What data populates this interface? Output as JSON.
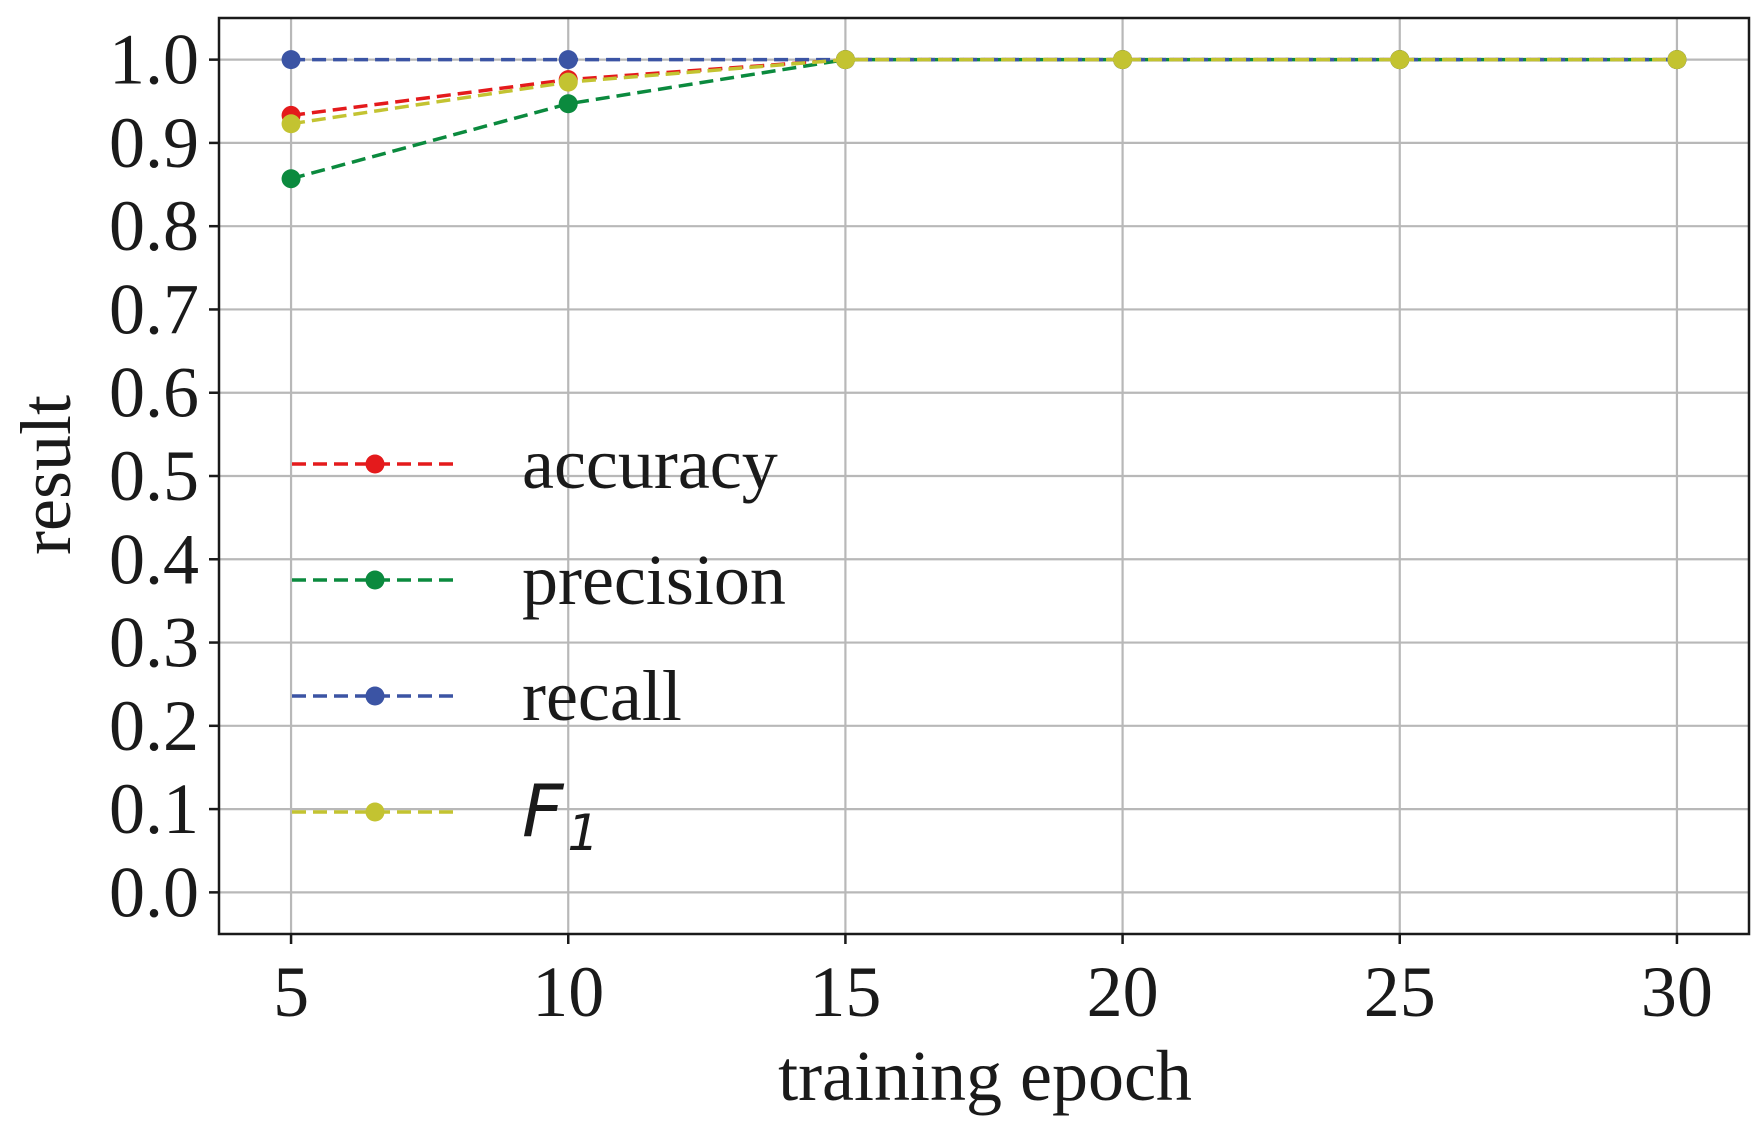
{
  "chart_data": {
    "type": "line",
    "title": "",
    "xlabel": "training epoch",
    "ylabel": "result",
    "x": [
      5,
      10,
      15,
      20,
      25,
      30
    ],
    "xticks": [
      "5",
      "10",
      "15",
      "20",
      "25",
      "30"
    ],
    "yticks": [
      "0.0",
      "0.1",
      "0.2",
      "0.3",
      "0.4",
      "0.5",
      "0.6",
      "0.7",
      "0.8",
      "0.9",
      "1.0"
    ],
    "xlim": [
      3.7,
      31.3
    ],
    "ylim": [
      -0.05,
      1.05
    ],
    "grid": true,
    "legend_position": "center-left",
    "series": [
      {
        "name": "accuracy",
        "color": "#e41a1c",
        "linestyle": "dashed",
        "marker": "circle",
        "values": [
          0.933,
          0.976,
          1.0,
          1.0,
          1.0,
          1.0
        ]
      },
      {
        "name": "precision",
        "color": "#0b8a3e",
        "linestyle": "dashed",
        "marker": "circle",
        "values": [
          0.857,
          0.947,
          1.0,
          1.0,
          1.0,
          1.0
        ]
      },
      {
        "name": "recall",
        "color": "#3b54a4",
        "linestyle": "dashed",
        "marker": "circle",
        "values": [
          1.0,
          1.0,
          1.0,
          1.0,
          1.0,
          1.0
        ]
      },
      {
        "name": "F",
        "subscript": "1",
        "color": "#c3c331",
        "linestyle": "dashed",
        "marker": "circle",
        "values": [
          0.923,
          0.973,
          1.0,
          1.0,
          1.0,
          1.0
        ]
      }
    ]
  }
}
